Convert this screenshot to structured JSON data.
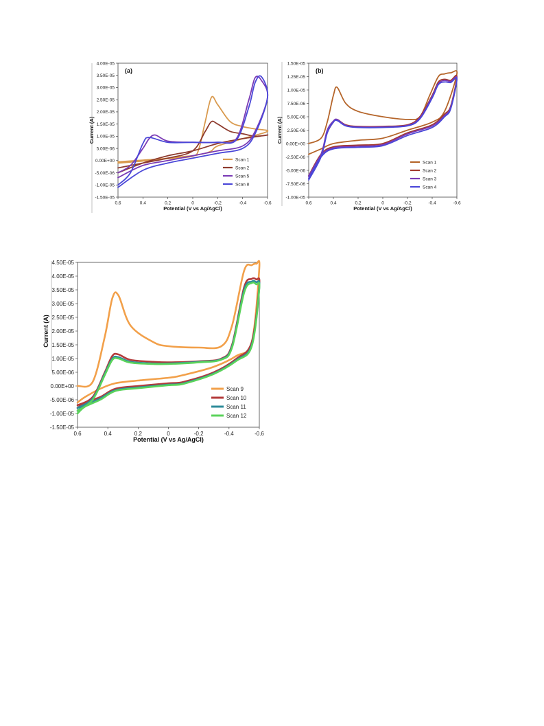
{
  "chart_data": [
    {
      "type": "line",
      "panel_label": "(a)",
      "xlabel": "Potential (V vs Ag/AgCl)",
      "ylabel": "Current (A)",
      "x_reversed": true,
      "xlim": [
        0.6,
        -0.6
      ],
      "ylim": [
        -1.5e-05,
        4e-05
      ],
      "x_ticks": [
        0.6,
        0.4,
        0.2,
        0,
        -0.2,
        -0.4,
        -0.6
      ],
      "x_tick_labels": [
        "0.6",
        "0.4",
        "0.2",
        "0",
        "-0.2",
        "-0.4",
        "-0.6"
      ],
      "y_ticks": [
        -1.5e-05,
        -1e-05,
        -5e-06,
        0,
        5e-06,
        1e-05,
        1.5e-05,
        2e-05,
        2.5e-05,
        3e-05,
        3.5e-05,
        4e-05
      ],
      "y_tick_labels": [
        "-1.50E-05",
        "-1.00E-05",
        "-5.00E-06",
        "0.00E+00",
        "5.00E-06",
        "1.00E-05",
        "1.50E-05",
        "2.00E-05",
        "2.50E-05",
        "3.00E-05",
        "3.50E-05",
        "4.00E-05"
      ],
      "legend_position": "bottom-right",
      "series": [
        {
          "name": "Scan 1",
          "color": "#D99A4E",
          "x": [
            0.6,
            0.4,
            0.2,
            0.0,
            -0.05,
            -0.1,
            -0.15,
            -0.2,
            -0.3,
            -0.4,
            -0.5,
            -0.6,
            -0.4,
            -0.2,
            -0.15,
            -0.1,
            -0.05,
            0.0,
            0.2,
            0.4,
            0.6
          ],
          "y": [
            -5e-07,
            2e-07,
            8e-07,
            1.8e-06,
            5e-06,
            1.6e-05,
            2.6e-05,
            2.3e-05,
            1.6e-05,
            1.4e-05,
            1.3e-05,
            1.2e-05,
            9e-06,
            6e-06,
            4e-06,
            3e-06,
            2.5e-06,
            2e-06,
            1e-06,
            -2e-07,
            -1e-06
          ]
        },
        {
          "name": "Scan 2",
          "color": "#8E3B2E",
          "x": [
            0.6,
            0.4,
            0.2,
            0.0,
            -0.1,
            -0.15,
            -0.2,
            -0.3,
            -0.4,
            -0.5,
            -0.6,
            -0.4,
            -0.2,
            0.0,
            0.2,
            0.4,
            0.6
          ],
          "y": [
            -3e-06,
            -1e-06,
            1e-06,
            4e-06,
            1.2e-05,
            1.6e-05,
            1.5e-05,
            1.2e-05,
            1.1e-05,
            1e-05,
            1.05e-05,
            9e-06,
            7e-06,
            4e-06,
            2e-06,
            -1e-06,
            -5e-06
          ]
        },
        {
          "name": "Scan 5",
          "color": "#7B3BB5",
          "x": [
            0.6,
            0.5,
            0.4,
            0.35,
            0.3,
            0.2,
            0.0,
            -0.2,
            -0.35,
            -0.45,
            -0.5,
            -0.55,
            -0.6,
            -0.5,
            -0.4,
            -0.2,
            0.0,
            0.2,
            0.4,
            0.6
          ],
          "y": [
            -5e-06,
            -2e-06,
            5e-06,
            9e-06,
            1.05e-05,
            8e-06,
            7.5e-06,
            7.5e-06,
            9e-06,
            2.5e-05,
            3.4e-05,
            3.3e-05,
            2.6e-05,
            1.2e-05,
            6e-06,
            4e-06,
            2e-06,
            0,
            -2e-06,
            -7e-06
          ]
        },
        {
          "name": "Scan 8",
          "color": "#4A47D8",
          "x": [
            0.6,
            0.5,
            0.4,
            0.35,
            0.2,
            0.0,
            -0.2,
            -0.35,
            -0.45,
            -0.5,
            -0.55,
            -0.6,
            -0.5,
            -0.4,
            -0.2,
            0.0,
            0.2,
            0.4,
            0.6
          ],
          "y": [
            -1e-05,
            -5e-06,
            7e-06,
            9.5e-06,
            7.5e-06,
            7.5e-06,
            7.5e-06,
            8.5e-06,
            2.2e-05,
            3.2e-05,
            3.45e-05,
            2.6e-05,
            1.1e-05,
            5e-06,
            3e-06,
            1e-06,
            -1e-06,
            -4e-06,
            -1.1e-05
          ]
        }
      ]
    },
    {
      "type": "line",
      "panel_label": "(b)",
      "xlabel": "Potential (V vs Ag/AgCl)",
      "ylabel": "Current (A)",
      "x_reversed": true,
      "xlim": [
        0.6,
        -0.6
      ],
      "ylim": [
        -1e-05,
        1.5e-05
      ],
      "x_ticks": [
        0.6,
        0.4,
        0.2,
        0,
        -0.2,
        -0.4,
        -0.6
      ],
      "x_tick_labels": [
        "0.6",
        "0.4",
        "0.2",
        "0",
        "-0.2",
        "-0.4",
        "-0.6"
      ],
      "y_ticks": [
        -1e-05,
        -7.5e-06,
        -5e-06,
        -2.5e-06,
        0,
        2.5e-06,
        5e-06,
        7.5e-06,
        1e-05,
        1.25e-05,
        1.5e-05
      ],
      "y_tick_labels": [
        "-1.00E-05",
        "-7.50E-06",
        "-5.00E-06",
        "-2.50E-06",
        "0.00E+00",
        "2.50E-06",
        "5.00E-06",
        "7.50E-06",
        "1.00E-05",
        "1.25E-05",
        "1.50E-05"
      ],
      "legend_position": "bottom-right",
      "series": [
        {
          "name": "Scan 1",
          "color": "#B5652A",
          "x": [
            0.6,
            0.5,
            0.45,
            0.4,
            0.37,
            0.3,
            0.2,
            0.0,
            -0.2,
            -0.3,
            -0.38,
            -0.45,
            -0.5,
            -0.55,
            -0.6,
            -0.5,
            -0.4,
            -0.2,
            0.0,
            0.2,
            0.4,
            0.5,
            0.6
          ],
          "y": [
            0,
            1e-06,
            4e-06,
            9e-06,
            1.05e-05,
            7.5e-06,
            6e-06,
            5e-06,
            4.5e-06,
            5e-06,
            9e-06,
            1.25e-05,
            1.3e-05,
            1.32e-05,
            1.3e-05,
            6e-06,
            4e-06,
            2.5e-06,
            1e-06,
            6e-07,
            0,
            -1e-06,
            -2e-06
          ]
        },
        {
          "name": "Scan 2",
          "color": "#A23A2E",
          "x": [
            0.6,
            0.5,
            0.45,
            0.4,
            0.37,
            0.3,
            0.2,
            0.0,
            -0.2,
            -0.3,
            -0.4,
            -0.45,
            -0.5,
            -0.55,
            -0.6,
            -0.55,
            -0.5,
            -0.4,
            -0.2,
            0.0,
            0.2,
            0.4,
            0.5,
            0.6
          ],
          "y": [
            -6.5e-06,
            -2e-06,
            2e-06,
            4e-06,
            4.5e-06,
            3.5e-06,
            3.2e-06,
            3.2e-06,
            3.5e-06,
            5e-06,
            9e-06,
            1.15e-05,
            1.2e-05,
            1.18e-05,
            1.25e-05,
            7e-06,
            5.5e-06,
            3.5e-06,
            2e-06,
            0,
            -3e-07,
            -6e-07,
            -2e-06,
            -6e-06
          ]
        },
        {
          "name": "Scan 3",
          "color": "#7B3BB5",
          "x": [
            0.6,
            0.5,
            0.45,
            0.4,
            0.37,
            0.3,
            0.2,
            0.0,
            -0.2,
            -0.3,
            -0.4,
            -0.45,
            -0.5,
            -0.55,
            -0.6,
            -0.55,
            -0.5,
            -0.4,
            -0.2,
            0.0,
            0.2,
            0.4,
            0.5,
            0.6
          ],
          "y": [
            -6e-06,
            -2e-06,
            2.5e-06,
            4.2e-06,
            4.5e-06,
            3.4e-06,
            3.1e-06,
            3.1e-06,
            3.4e-06,
            4.8e-06,
            8.8e-06,
            1.12e-05,
            1.18e-05,
            1.16e-05,
            1.22e-05,
            6.8e-06,
            5.2e-06,
            3.3e-06,
            1.8e-06,
            -2e-07,
            -5e-07,
            -8e-07,
            -2.2e-06,
            -6.2e-06
          ]
        },
        {
          "name": "Scan 4",
          "color": "#4A47D8",
          "x": [
            0.6,
            0.5,
            0.45,
            0.4,
            0.37,
            0.3,
            0.2,
            0.0,
            -0.2,
            -0.3,
            -0.4,
            -0.45,
            -0.5,
            -0.55,
            -0.6,
            -0.55,
            -0.5,
            -0.4,
            -0.2,
            0.0,
            0.2,
            0.4,
            0.5,
            0.6
          ],
          "y": [
            -6.8e-06,
            -2.5e-06,
            2e-06,
            4e-06,
            4.3e-06,
            3.3e-06,
            3e-06,
            3e-06,
            3.3e-06,
            4.6e-06,
            8.5e-06,
            1.1e-05,
            1.15e-05,
            1.14e-05,
            1.2e-05,
            6.5e-06,
            5e-06,
            3e-06,
            1.5e-06,
            -4e-07,
            -7e-07,
            -1e-06,
            -2.5e-06,
            -6.5e-06
          ]
        }
      ]
    },
    {
      "type": "line",
      "panel_label": "",
      "xlabel": "Potential (V vs Ag/AgCl)",
      "ylabel": "Current (A)",
      "x_reversed": true,
      "xlim": [
        0.6,
        -0.6
      ],
      "ylim": [
        -1.5e-05,
        4.5e-05
      ],
      "x_ticks": [
        0.6,
        0.4,
        0.2,
        0,
        -0.2,
        -0.4,
        -0.6
      ],
      "x_tick_labels": [
        "0.6",
        "0.4",
        "0.2",
        "0",
        "-0.2",
        "-0.4",
        "-0.6"
      ],
      "y_ticks": [
        -1.5e-05,
        -1e-05,
        -5e-06,
        0,
        5e-06,
        1e-05,
        1.5e-05,
        2e-05,
        2.5e-05,
        3e-05,
        3.5e-05,
        4e-05,
        4.5e-05
      ],
      "y_tick_labels": [
        "-1.50E-05",
        "-1.00E-05",
        "-5.00E-06",
        "0.00E+00",
        "5.00E-06",
        "1.00E-05",
        "1.50E-05",
        "2.00E-05",
        "2.50E-05",
        "3.00E-05",
        "3.50E-05",
        "4.00E-05",
        "4.50E-05"
      ],
      "legend_position": "bottom-right",
      "series": [
        {
          "name": "Scan 9",
          "color": "#F2A04A",
          "x": [
            0.6,
            0.5,
            0.42,
            0.37,
            0.33,
            0.25,
            0.1,
            0.0,
            -0.2,
            -0.35,
            -0.42,
            -0.5,
            -0.55,
            -0.58,
            -0.6,
            -0.55,
            -0.45,
            -0.3,
            -0.1,
            0.0,
            0.2,
            0.35,
            0.45,
            0.55,
            0.6
          ],
          "y": [
            0,
            1.5e-06,
            1.8e-05,
            3.2e-05,
            3.3e-05,
            2.2e-05,
            1.6e-05,
            1.45e-05,
            1.4e-05,
            1.45e-05,
            2.2e-05,
            4.2e-05,
            4.4e-05,
            4.45e-05,
            4.3e-05,
            1.6e-05,
            1.1e-05,
            7e-06,
            4e-06,
            3e-06,
            2e-06,
            1e-06,
            -1e-06,
            -4e-06,
            -6e-06
          ]
        },
        {
          "name": "Scan 10",
          "color": "#B33A3A",
          "x": [
            0.6,
            0.5,
            0.42,
            0.37,
            0.33,
            0.25,
            0.1,
            0.0,
            -0.2,
            -0.35,
            -0.42,
            -0.5,
            -0.55,
            -0.58,
            -0.6,
            -0.55,
            -0.45,
            -0.3,
            -0.1,
            0.0,
            0.2,
            0.35,
            0.45,
            0.55,
            0.6
          ],
          "y": [
            -7e-06,
            -4e-06,
            5e-06,
            1.1e-05,
            1.15e-05,
            9.5e-06,
            8.8e-06,
            8.6e-06,
            9e-06,
            1e-05,
            1.5e-05,
            3.6e-05,
            3.9e-05,
            3.88e-05,
            3.7e-05,
            1.6e-05,
            1e-05,
            5e-06,
            1.5e-06,
            1e-06,
            0,
            -1e-06,
            -4e-06,
            -6e-06,
            -8e-06
          ]
        },
        {
          "name": "Scan 11",
          "color": "#2E8B9A",
          "x": [
            0.6,
            0.5,
            0.42,
            0.37,
            0.33,
            0.25,
            0.1,
            0.0,
            -0.2,
            -0.35,
            -0.42,
            -0.5,
            -0.55,
            -0.58,
            -0.6,
            -0.55,
            -0.45,
            -0.3,
            -0.1,
            0.0,
            0.2,
            0.35,
            0.45,
            0.55,
            0.6
          ],
          "y": [
            -8e-06,
            -4.5e-06,
            4.5e-06,
            1e-05,
            1.05e-05,
            8.8e-06,
            8.2e-06,
            8.2e-06,
            8.8e-06,
            9.8e-06,
            1.45e-05,
            3.5e-05,
            3.8e-05,
            3.78e-05,
            3.6e-05,
            1.5e-05,
            9.5e-06,
            4.6e-06,
            1e-06,
            5e-07,
            -5e-07,
            -1.5e-06,
            -4.5e-06,
            -7e-06,
            -9e-06
          ]
        },
        {
          "name": "Scan 12",
          "color": "#5BD35B",
          "x": [
            0.6,
            0.5,
            0.42,
            0.37,
            0.33,
            0.25,
            0.1,
            0.0,
            -0.2,
            -0.35,
            -0.42,
            -0.5,
            -0.55,
            -0.58,
            -0.6,
            -0.55,
            -0.45,
            -0.3,
            -0.1,
            0.0,
            0.2,
            0.35,
            0.45,
            0.55,
            0.6
          ],
          "y": [
            -9e-06,
            -5e-06,
            4e-06,
            9.5e-06,
            1e-05,
            8.5e-06,
            8e-06,
            8e-06,
            8.6e-06,
            9.6e-06,
            1.4e-05,
            3.4e-05,
            3.75e-05,
            3.7e-05,
            3.55e-05,
            1.45e-05,
            9.2e-06,
            4.4e-06,
            8e-07,
            3e-07,
            -8e-07,
            -1.8e-06,
            -5e-06,
            -7.5e-06,
            -1e-05
          ]
        }
      ]
    }
  ]
}
